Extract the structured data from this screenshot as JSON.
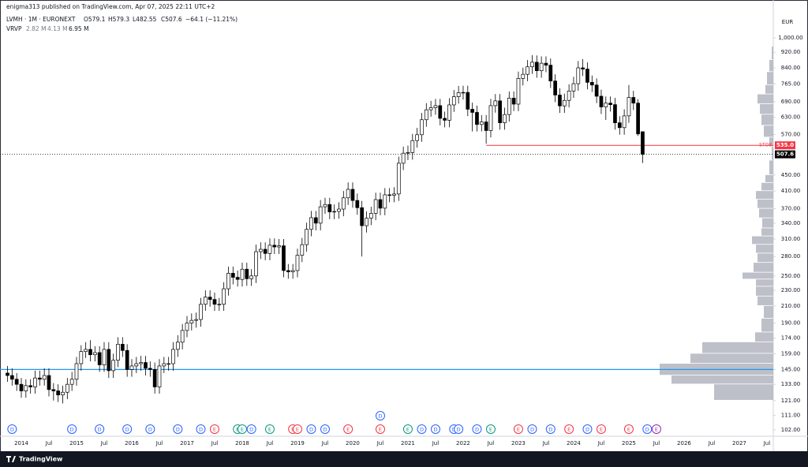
{
  "header": {
    "publisher": "enigma313 published on TradingView.com, Apr 07, 2025 22:11 UTC+2",
    "symbol": "LVMH · 1M · EURONEXT",
    "ohlc": [
      "O579.1",
      "H579.3",
      "L482.55",
      "C507.6",
      "−64.1 (−11.21%)"
    ],
    "indicator": "VRVP",
    "indicator_values": [
      "2.82 M",
      "4.13 M",
      "6.95 M"
    ],
    "currency": "EUR",
    "brand": "TradingView"
  },
  "chart_data": {
    "type": "candlestick",
    "log_scale": true,
    "grid": false,
    "up_color": "#ffffff",
    "down_color": "#000000",
    "categories": [
      null,
      null,
      null,
      "2014",
      null,
      null,
      null,
      null,
      null,
      "Jul",
      null,
      null,
      null,
      null,
      null,
      "2015",
      null,
      null,
      null,
      null,
      null,
      "Jul",
      null,
      null,
      null,
      null,
      null,
      "2016",
      null,
      null,
      null,
      null,
      null,
      "Jul",
      null,
      null,
      null,
      null,
      null,
      "2017",
      null,
      null,
      null,
      null,
      null,
      "Jul",
      null,
      null,
      null,
      null,
      null,
      "2018",
      null,
      null,
      null,
      null,
      null,
      "Jul",
      null,
      null,
      null,
      null,
      null,
      "2019",
      null,
      null,
      null,
      null,
      null,
      "Jul",
      null,
      null,
      null,
      null,
      null,
      "2020",
      null,
      null,
      null,
      null,
      null,
      "Jul",
      null,
      null,
      null,
      null,
      null,
      "2021",
      null,
      null,
      null,
      null,
      null,
      "Jul",
      null,
      null,
      null,
      null,
      null,
      "2022",
      null,
      null,
      null,
      null,
      null,
      "Jul",
      null,
      null,
      null,
      null,
      null,
      "2023",
      null,
      null,
      null,
      null,
      null,
      "Jul",
      null,
      null,
      null,
      null,
      null,
      "2024",
      null,
      null,
      null,
      null,
      null,
      "Jul",
      null,
      null,
      null,
      null,
      null,
      "2025",
      null,
      null,
      null,
      null,
      null,
      "Jul",
      null,
      null,
      null,
      null,
      null,
      "2026",
      null,
      null,
      null,
      null,
      null,
      "Jul",
      null,
      null,
      null,
      null,
      null,
      "2027",
      null,
      null,
      null,
      null,
      null,
      "Jul"
    ],
    "open": [
      142,
      140,
      137,
      133,
      128,
      132,
      131,
      138,
      137,
      140,
      129,
      128,
      125,
      127,
      133,
      137,
      150,
      161,
      163,
      158,
      160,
      149,
      163,
      144,
      153,
      168,
      162,
      145,
      148,
      150,
      151,
      146,
      145,
      131,
      148,
      150,
      150,
      163,
      170,
      182,
      190,
      193,
      194,
      212,
      221,
      218,
      212,
      212,
      232,
      254,
      248,
      245,
      260,
      246,
      250,
      288,
      292,
      285,
      299,
      296,
      298,
      258,
      256,
      258,
      282,
      300,
      328,
      351,
      340,
      374,
      379,
      363,
      364,
      369,
      394,
      414,
      388,
      372,
      335,
      350,
      360,
      390,
      371,
      401,
      400,
      403,
      482,
      511,
      513,
      550,
      569,
      621,
      658,
      666,
      674,
      626,
      619,
      677,
      710,
      727,
      728,
      660,
      648,
      604,
      613,
      583,
      674,
      693,
      610,
      640,
      704,
      680,
      790,
      809,
      845,
      868,
      826,
      863,
      853,
      778,
      717,
      673,
      695,
      734,
      766,
      840,
      834,
      772,
      760,
      712,
      669,
      684,
      678,
      610,
      593,
      635,
      707,
      684,
      579.1,
      null,
      null,
      null,
      null,
      null,
      null,
      null,
      null,
      null,
      null,
      null,
      null,
      null,
      null,
      null,
      null,
      null,
      null,
      null,
      null,
      null,
      null,
      null,
      null,
      null,
      null,
      null
    ],
    "high": [
      148,
      146,
      142,
      138,
      137,
      137,
      144,
      144,
      146,
      146,
      134,
      133,
      132,
      138,
      143,
      156,
      167,
      170,
      172,
      166,
      166,
      170,
      170,
      159,
      175,
      175,
      168,
      154,
      156,
      157,
      157,
      152,
      151,
      154,
      156,
      156,
      170,
      177,
      189,
      198,
      201,
      202,
      220,
      230,
      230,
      227,
      220,
      241,
      264,
      264,
      258,
      270,
      270,
      260,
      300,
      304,
      304,
      311,
      311,
      310,
      310,
      268,
      268,
      293,
      312,
      341,
      365,
      365,
      389,
      394,
      394,
      379,
      384,
      410,
      431,
      431,
      404,
      387,
      364,
      374,
      406,
      406,
      417,
      417,
      419,
      501,
      531,
      534,
      572,
      592,
      646,
      684,
      693,
      701,
      701,
      651,
      704,
      738,
      756,
      757,
      757,
      686,
      674,
      638,
      638,
      701,
      721,
      721,
      666,
      732,
      732,
      822,
      841,
      879,
      904,
      903,
      898,
      898,
      887,
      809,
      746,
      723,
      763,
      797,
      874,
      884,
      867,
      803,
      790,
      740,
      711,
      711,
      705,
      634,
      660,
      760,
      735,
      700,
      579.3,
      null,
      null,
      null,
      null,
      null,
      null,
      null,
      null,
      null,
      null,
      null,
      null,
      null,
      null,
      null,
      null,
      null,
      null,
      null,
      null,
      null,
      null,
      null,
      null,
      null,
      null,
      null
    ],
    "low": [
      135,
      132,
      128,
      123,
      123,
      126,
      126,
      132,
      132,
      124,
      121,
      120,
      119,
      122,
      128,
      132,
      144,
      155,
      152,
      152,
      143,
      143,
      138,
      138,
      147,
      156,
      139,
      139,
      142,
      144,
      140,
      139,
      126,
      126,
      142,
      144,
      144,
      156,
      163,
      175,
      182,
      185,
      186,
      204,
      209,
      204,
      204,
      204,
      223,
      238,
      235,
      235,
      236,
      236,
      240,
      276,
      274,
      274,
      284,
      284,
      248,
      246,
      246,
      248,
      271,
      288,
      315,
      326,
      326,
      359,
      348,
      348,
      349,
      354,
      378,
      372,
      357,
      280,
      322,
      336,
      346,
      356,
      356,
      384,
      384,
      387,
      463,
      491,
      492,
      528,
      546,
      596,
      632,
      639,
      601,
      594,
      594,
      650,
      682,
      698,
      634,
      580,
      580,
      580,
      540,
      560,
      647,
      586,
      586,
      614,
      653,
      653,
      758,
      777,
      811,
      793,
      793,
      819,
      747,
      688,
      646,
      646,
      667,
      705,
      735,
      801,
      741,
      730,
      684,
      642,
      620,
      651,
      586,
      569,
      569,
      610,
      657,
      565,
      482.55,
      null,
      null,
      null,
      null,
      null,
      null,
      null,
      null,
      null,
      null,
      null,
      null,
      null,
      null,
      null,
      null,
      null,
      null,
      null,
      null,
      null,
      null,
      null,
      null,
      null,
      null,
      null
    ],
    "close": [
      140,
      137,
      133,
      128,
      132,
      131,
      138,
      137,
      140,
      129,
      128,
      125,
      127,
      133,
      137,
      150,
      161,
      163,
      158,
      160,
      149,
      163,
      144,
      153,
      168,
      162,
      145,
      148,
      150,
      151,
      146,
      145,
      131,
      148,
      150,
      150,
      163,
      170,
      182,
      190,
      193,
      194,
      212,
      221,
      218,
      212,
      212,
      232,
      254,
      248,
      245,
      260,
      246,
      250,
      288,
      292,
      285,
      299,
      296,
      298,
      258,
      256,
      258,
      282,
      300,
      328,
      351,
      340,
      374,
      379,
      363,
      364,
      369,
      394,
      414,
      388,
      372,
      335,
      350,
      360,
      390,
      371,
      401,
      400,
      403,
      482,
      511,
      513,
      550,
      569,
      621,
      658,
      666,
      674,
      626,
      619,
      677,
      710,
      727,
      728,
      660,
      648,
      604,
      613,
      583,
      674,
      693,
      610,
      640,
      704,
      680,
      790,
      809,
      845,
      868,
      826,
      863,
      853,
      778,
      717,
      673,
      695,
      734,
      766,
      840,
      834,
      772,
      760,
      712,
      669,
      684,
      678,
      610,
      593,
      635,
      707,
      684,
      571.7,
      507.6,
      null,
      null,
      null,
      null,
      null,
      null,
      null,
      null,
      null,
      null,
      null,
      null,
      null,
      null,
      null,
      null,
      null,
      null,
      null,
      null,
      null,
      null,
      null,
      null,
      null,
      null,
      null
    ],
    "ylim": [
      98.3,
      1148
    ],
    "yticks": [
      {
        "value": 102,
        "label": "102.00"
      },
      {
        "value": 111,
        "label": "111.00"
      },
      {
        "value": 121,
        "label": "121.00"
      },
      {
        "value": 133,
        "label": "133.00"
      },
      {
        "value": 145,
        "label": "145.00"
      },
      {
        "value": 159,
        "label": "159.00"
      },
      {
        "value": 174,
        "label": "174.00"
      },
      {
        "value": 190,
        "label": "190.00"
      },
      {
        "value": 210,
        "label": "210.00"
      },
      {
        "value": 230,
        "label": "230.00"
      },
      {
        "value": 250,
        "label": "250.00"
      },
      {
        "value": 280,
        "label": "280.00"
      },
      {
        "value": 310,
        "label": "310.00"
      },
      {
        "value": 340,
        "label": "340.00"
      },
      {
        "value": 370,
        "label": "370.00"
      },
      {
        "value": 410,
        "label": "410.00"
      },
      {
        "value": 450,
        "label": "450.00"
      },
      {
        "value": 570,
        "label": "570.00"
      },
      {
        "value": 630,
        "label": "630.00"
      },
      {
        "value": 690,
        "label": "690.00"
      },
      {
        "value": 765,
        "label": "765.00"
      },
      {
        "value": 840,
        "label": "840.00"
      },
      {
        "value": 920,
        "label": "920.00"
      },
      {
        "value": 1000,
        "label": "1,000.00"
      }
    ],
    "hlines": [
      {
        "value": 145,
        "color": "#2196f3"
      }
    ],
    "stop": {
      "value": 535,
      "label": "535.0",
      "text": "STOP",
      "color": "#f23645",
      "start": 104
    },
    "last_price": {
      "value": 507.6,
      "color": "#000000"
    },
    "volume_profile": {
      "color": "#b2b5be",
      "bins": [
        121,
        133,
        140,
        150,
        159,
        170,
        180,
        195,
        210,
        222,
        235,
        245,
        255,
        270,
        285,
        300,
        315,
        330,
        350,
        370,
        390,
        410,
        430,
        450,
        490,
        530,
        560,
        600,
        640,
        680,
        720,
        760,
        820,
        880,
        950
      ],
      "values": [
        75,
        129,
        144,
        105,
        90,
        23,
        15,
        12,
        20,
        22,
        22,
        39,
        25,
        20,
        22,
        27,
        15,
        14,
        18,
        20,
        22,
        15,
        10,
        5,
        2,
        5,
        12,
        15,
        17,
        20,
        10,
        8,
        5,
        2
      ]
    },
    "events": [
      {
        "label": "D",
        "at": 1,
        "color": "#2962ff"
      },
      {
        "label": "D",
        "at": 14,
        "color": "#2962ff"
      },
      {
        "label": "D",
        "at": 20,
        "color": "#2962ff"
      },
      {
        "label": "D",
        "at": 26,
        "color": "#2962ff"
      },
      {
        "label": "D",
        "at": 31,
        "color": "#2962ff"
      },
      {
        "label": "D",
        "at": 37,
        "color": "#2962ff"
      },
      {
        "label": "D",
        "at": 42,
        "color": "#2962ff"
      },
      {
        "label": "E",
        "at": 45,
        "color": "#f23645"
      },
      {
        "label": "E",
        "at": 50,
        "color": "#089981"
      },
      {
        "label": "E",
        "at": 51,
        "color": "#089981"
      },
      {
        "label": "D",
        "at": 53,
        "color": "#2962ff"
      },
      {
        "label": "E",
        "at": 57,
        "color": "#089981"
      },
      {
        "label": "E",
        "at": 62,
        "color": "#f23645"
      },
      {
        "label": "E",
        "at": 63,
        "color": "#f23645"
      },
      {
        "label": "D",
        "at": 66,
        "color": "#2962ff"
      },
      {
        "label": "D",
        "at": 69,
        "color": "#2962ff"
      },
      {
        "label": "E",
        "at": 74,
        "color": "#f23645"
      },
      {
        "label": "E",
        "at": 81,
        "color": "#f23645"
      },
      {
        "label": "E",
        "at": 87,
        "color": "#089981"
      },
      {
        "label": "D",
        "at": 90,
        "color": "#2962ff"
      },
      {
        "label": "D",
        "at": 93,
        "color": "#2962ff"
      },
      {
        "label": "D",
        "at": 97,
        "color": "#2962ff"
      },
      {
        "label": "D",
        "at": 98,
        "color": "#2962ff"
      },
      {
        "label": "D",
        "at": 102,
        "color": "#2962ff"
      },
      {
        "label": "E",
        "at": 105,
        "color": "#089981"
      },
      {
        "label": "E",
        "at": 111,
        "color": "#f23645"
      },
      {
        "label": "D",
        "at": 114,
        "color": "#2962ff"
      },
      {
        "label": "D",
        "at": 118,
        "color": "#2962ff"
      },
      {
        "label": "E",
        "at": 122,
        "color": "#f23645"
      },
      {
        "label": "D",
        "at": 126,
        "color": "#2962ff"
      },
      {
        "label": "E",
        "at": 129,
        "color": "#f23645"
      },
      {
        "label": "E",
        "at": 135,
        "color": "#f23645"
      },
      {
        "label": "D",
        "at": 139,
        "color": "#2962ff"
      },
      {
        "label": "E",
        "at": 141,
        "color": "#9c27b0"
      }
    ],
    "upper_events": [
      {
        "label": "D",
        "at": 81,
        "color": "#2962ff"
      }
    ]
  }
}
